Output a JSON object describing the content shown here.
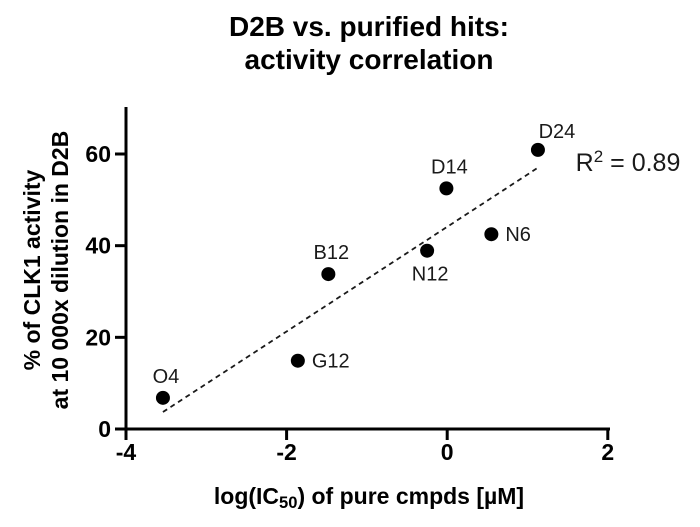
{
  "title": {
    "line1": "D2B vs. purified hits:",
    "line2": "activity correlation"
  },
  "chart_data": {
    "type": "scatter",
    "title": "D2B vs. purified hits: activity correlation",
    "xlabel": "log(IC50) of pure cmpds [µM]",
    "xlabel_parts": {
      "pre": "log(IC",
      "sub": "50",
      "post": ") of pure cmpds [µM]"
    },
    "ylabel_lines": [
      "% of CLK1 activity",
      "at 10 000x dilution in D2B"
    ],
    "xlim": [
      -4,
      2
    ],
    "ylim": [
      0,
      70
    ],
    "xticks": [
      "-4",
      "-2",
      "0",
      "2"
    ],
    "xtick_values": [
      -4,
      -2,
      0,
      2
    ],
    "yticks": [
      "0",
      "20",
      "40",
      "60"
    ],
    "ytick_values": [
      0,
      20,
      40,
      60
    ],
    "grid": false,
    "points": [
      {
        "label": "O4",
        "x": -3.54,
        "y": 6.8,
        "label_pos": "above"
      },
      {
        "label": "G12",
        "x": -1.86,
        "y": 14.9,
        "label_pos": "right"
      },
      {
        "label": "B12",
        "x": -1.48,
        "y": 33.8,
        "label_pos": "above"
      },
      {
        "label": "N12",
        "x": -0.25,
        "y": 38.9,
        "label_pos": "below"
      },
      {
        "label": "D14",
        "x": -0.01,
        "y": 52.5,
        "label_pos": "above"
      },
      {
        "label": "N6",
        "x": 0.55,
        "y": 42.5,
        "label_pos": "right"
      },
      {
        "label": "D24",
        "x": 1.13,
        "y": 60.9,
        "label_pos": "above-right"
      }
    ],
    "trendline": {
      "style": "dashed",
      "x1": -3.54,
      "y1": 3.7,
      "x2": 1.12,
      "y2": 56.9,
      "r_squared": 0.89
    },
    "annotation": {
      "prefix": "R",
      "sup": "2",
      "suffix": " = 0.89",
      "x": 1.6,
      "y": 56.3
    },
    "colors": {
      "point": "#000000",
      "line": "#1a1a1a",
      "axis": "#000000",
      "text": "#000000",
      "point_label": "#1a1a1a",
      "background": "#ffffff"
    }
  }
}
